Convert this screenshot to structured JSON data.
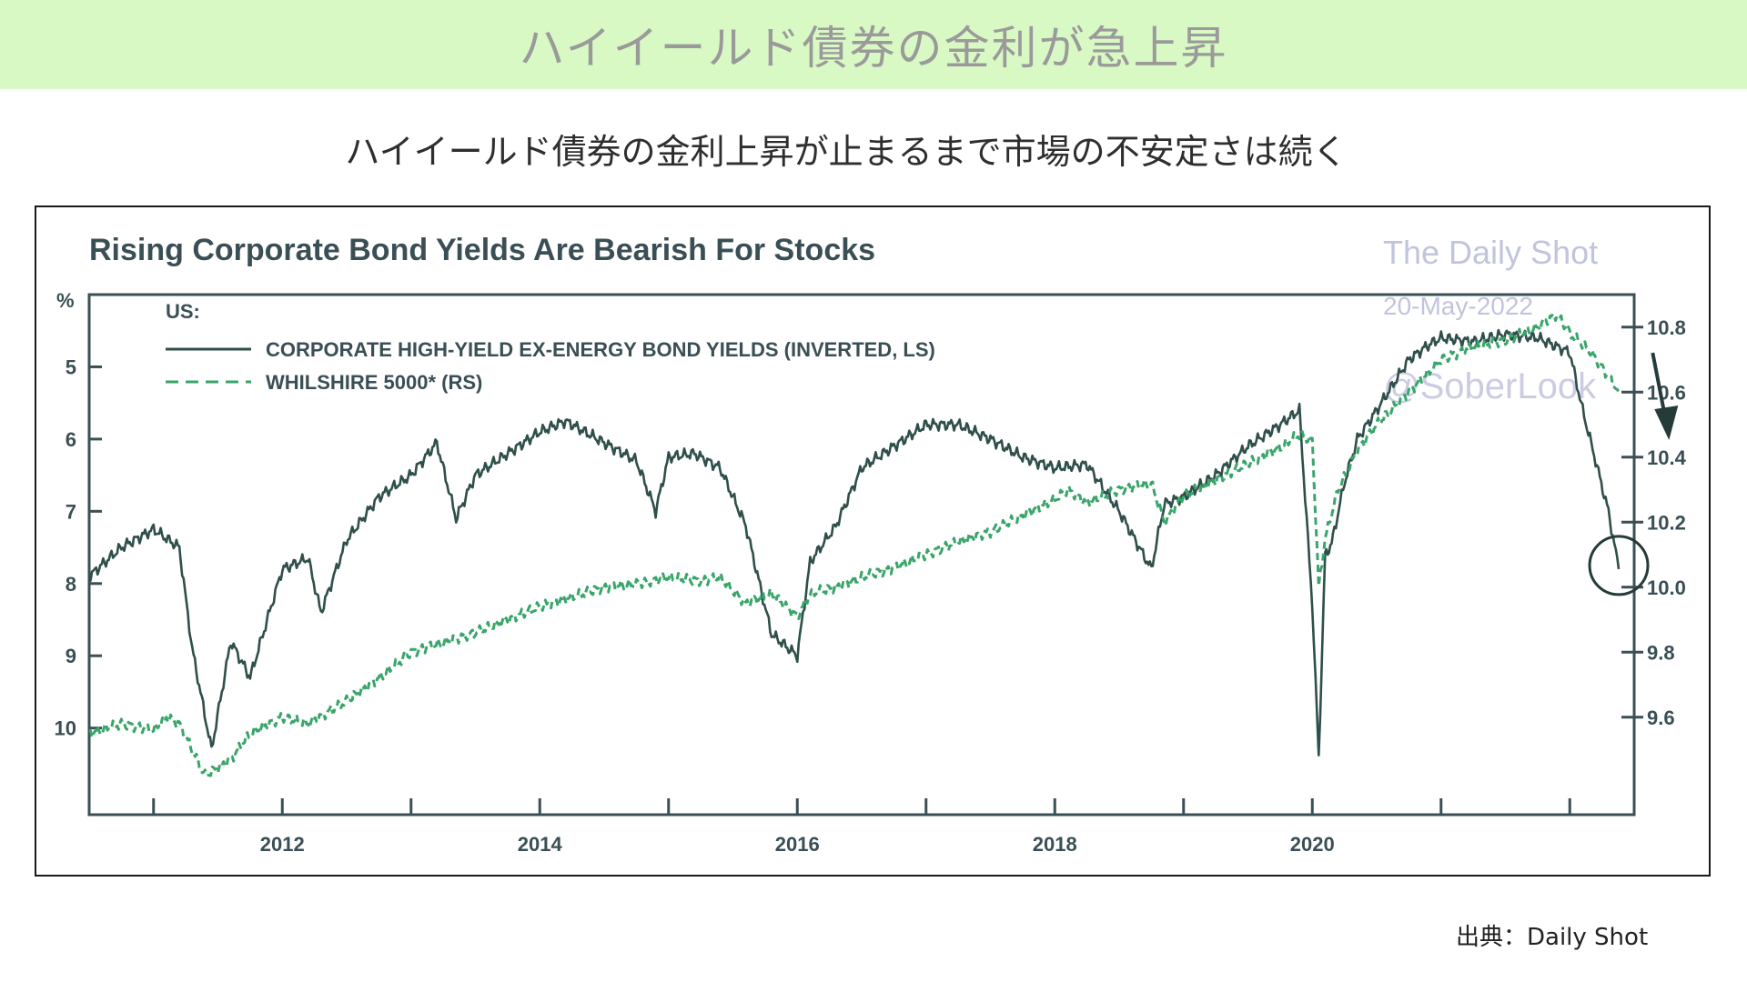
{
  "banner": {
    "title": "ハイイールド債券の金利が急上昇"
  },
  "subtitle": "ハイイールド債券の金利上昇が止まるまで市場の不安定さは続く",
  "source": "出典：Daily Shot",
  "colors": {
    "banner_bg": "#d9f9c4",
    "hy_line": "#2f4f4a",
    "wilshire_line": "#3aa56b",
    "watermark": "#c2c4dd"
  },
  "chart_data": {
    "type": "line",
    "title": "Rising Corporate Bond Yields Are Bearish For Stocks",
    "watermark": {
      "brand": "The Daily Shot",
      "date": "20-May-2022",
      "handle": "@SoberLook"
    },
    "legend": {
      "heading": "US:",
      "position": "top-left"
    },
    "left_axis": {
      "unit_label": "%",
      "inverted": true,
      "ticks": [
        "5",
        "6",
        "7",
        "8",
        "9",
        "10"
      ],
      "ylim": [
        4.0,
        11.2
      ]
    },
    "right_axis": {
      "ticks": [
        "10.8",
        "10.6",
        "10.4",
        "10.2",
        "10.0",
        "9.8",
        "9.6"
      ],
      "ylim": [
        9.3,
        10.9
      ]
    },
    "x_axis": {
      "ticks": [
        "2012",
        "2014",
        "2016",
        "2018",
        "2020"
      ],
      "xlim": [
        2010.5,
        2022.5
      ]
    },
    "series": [
      {
        "name": "CORPORATE HIGH-YIELD EX-ENERGY BOND YIELDS (INVERTED, LS)",
        "axis": "left",
        "style": "solid",
        "color": "#2f4f4a",
        "x": [
          2010.5,
          2010.75,
          2011.0,
          2011.2,
          2011.3,
          2011.45,
          2011.6,
          2011.75,
          2012.0,
          2012.2,
          2012.3,
          2012.5,
          2012.75,
          2013.0,
          2013.2,
          2013.35,
          2013.5,
          2013.75,
          2014.0,
          2014.2,
          2014.5,
          2014.75,
          2014.9,
          2015.0,
          2015.2,
          2015.4,
          2015.6,
          2015.8,
          2016.0,
          2016.1,
          2016.3,
          2016.5,
          2016.75,
          2017.0,
          2017.25,
          2017.5,
          2017.75,
          2018.0,
          2018.25,
          2018.5,
          2018.75,
          2018.85,
          2019.0,
          2019.25,
          2019.5,
          2019.75,
          2019.9,
          2020.0,
          2020.05,
          2020.1,
          2020.15,
          2020.25,
          2020.35,
          2020.5,
          2020.75,
          2020.9,
          2021.0,
          2021.25,
          2021.5,
          2021.75,
          2022.0,
          2022.1,
          2022.2,
          2022.3,
          2022.38
        ],
        "values": [
          7.9,
          7.5,
          7.25,
          7.5,
          8.9,
          10.3,
          8.8,
          9.3,
          7.8,
          7.65,
          8.4,
          7.4,
          6.8,
          6.5,
          6.05,
          7.1,
          6.5,
          6.2,
          5.9,
          5.75,
          6.05,
          6.3,
          7.0,
          6.25,
          6.2,
          6.4,
          7.2,
          8.7,
          9.0,
          7.7,
          7.2,
          6.4,
          6.1,
          5.8,
          5.8,
          6.0,
          6.25,
          6.4,
          6.35,
          7.0,
          7.8,
          6.9,
          6.8,
          6.5,
          6.1,
          5.8,
          5.6,
          8.3,
          10.4,
          7.6,
          7.45,
          6.6,
          6.0,
          5.6,
          4.9,
          4.7,
          4.6,
          4.65,
          4.55,
          4.6,
          4.8,
          5.6,
          6.3,
          7.0,
          7.8
        ]
      },
      {
        "name": "WHILSHIRE 5000* (RS)",
        "axis": "right",
        "style": "dashed",
        "color": "#3aa56b",
        "x": [
          2010.5,
          2010.75,
          2011.0,
          2011.1,
          2011.2,
          2011.4,
          2011.6,
          2011.75,
          2012.0,
          2012.2,
          2012.5,
          2012.75,
          2013.0,
          2013.25,
          2013.5,
          2013.75,
          2014.0,
          2014.25,
          2014.5,
          2014.75,
          2015.0,
          2015.25,
          2015.4,
          2015.6,
          2015.8,
          2016.0,
          2016.1,
          2016.3,
          2016.5,
          2016.75,
          2017.0,
          2017.25,
          2017.5,
          2017.75,
          2018.0,
          2018.1,
          2018.25,
          2018.5,
          2018.75,
          2018.85,
          2019.0,
          2019.25,
          2019.5,
          2019.75,
          2019.9,
          2020.0,
          2020.05,
          2020.1,
          2020.2,
          2020.35,
          2020.5,
          2020.75,
          2021.0,
          2021.25,
          2021.5,
          2021.75,
          2021.9,
          2022.0,
          2022.15,
          2022.3,
          2022.38
        ],
        "values": [
          9.55,
          9.58,
          9.56,
          9.6,
          9.58,
          9.42,
          9.47,
          9.55,
          9.6,
          9.58,
          9.65,
          9.72,
          9.8,
          9.83,
          9.86,
          9.9,
          9.94,
          9.97,
          10.0,
          10.01,
          10.03,
          10.02,
          10.03,
          9.95,
          9.98,
          9.91,
          9.98,
          10.0,
          10.03,
          10.06,
          10.1,
          10.14,
          10.17,
          10.22,
          10.27,
          10.3,
          10.26,
          10.3,
          10.32,
          10.2,
          10.28,
          10.33,
          10.38,
          10.43,
          10.47,
          10.45,
          10.0,
          10.15,
          10.3,
          10.42,
          10.5,
          10.6,
          10.7,
          10.74,
          10.76,
          10.8,
          10.84,
          10.78,
          10.73,
          10.65,
          10.6
        ]
      }
    ],
    "annotations": [
      {
        "type": "circle",
        "x": 2022.38,
        "y_left": 7.75
      },
      {
        "type": "arrow-down",
        "x": 2022.7
      }
    ]
  }
}
